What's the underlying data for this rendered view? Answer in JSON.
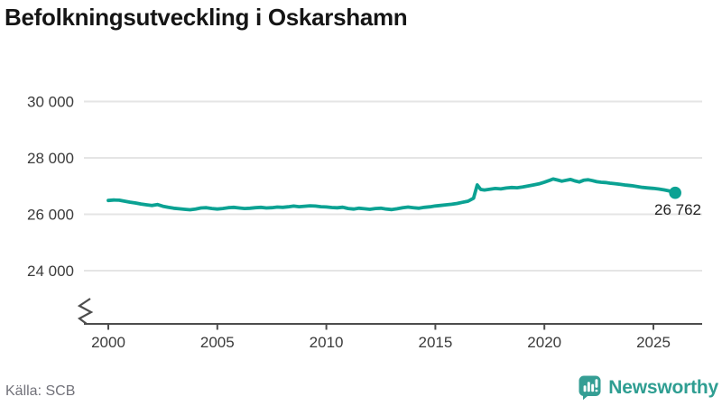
{
  "title": "Befolkningsutveckling i Oskarshamn",
  "source": "Källa: SCB",
  "branding": {
    "name": "Newsworthy",
    "icon": "bar-chart-speech-bubble-icon",
    "color": "#359e94"
  },
  "colors": {
    "line": "#0ba293",
    "axis": "#4d4d4d",
    "grid": "#e5e5e5",
    "tick_text": "#3b3b3b",
    "title_text": "#151515",
    "muted_text": "#72727a"
  },
  "chart_data": {
    "type": "line",
    "title": "Befolkningsutveckling i Oskarshamn",
    "xlabel": "",
    "ylabel": "",
    "legend": false,
    "grid": "horizontal",
    "axis_break_bottom_left": true,
    "xlim": [
      1998.9,
      2027.2
    ],
    "ylim": [
      23200,
      30400
    ],
    "x_ticks": {
      "values": [
        2000,
        2005,
        2010,
        2015,
        2020,
        2025
      ],
      "labels": [
        "2000",
        "2005",
        "2010",
        "2015",
        "2020",
        "2025"
      ]
    },
    "y_ticks": {
      "values": [
        24000,
        26000,
        28000,
        30000
      ],
      "labels": [
        "24 000",
        "26 000",
        "28 000",
        "30 000"
      ]
    },
    "end_label": "26 762",
    "end_value": 26762,
    "series": [
      {
        "name": "Befolkning",
        "x": [
          2000.0,
          2000.25,
          2000.5,
          2000.75,
          2001.0,
          2001.25,
          2001.5,
          2001.75,
          2002.0,
          2002.25,
          2002.5,
          2002.75,
          2003.0,
          2003.25,
          2003.5,
          2003.75,
          2004.0,
          2004.25,
          2004.5,
          2004.75,
          2005.0,
          2005.25,
          2005.5,
          2005.75,
          2006.0,
          2006.25,
          2006.5,
          2006.75,
          2007.0,
          2007.25,
          2007.5,
          2007.75,
          2008.0,
          2008.25,
          2008.5,
          2008.75,
          2009.0,
          2009.25,
          2009.5,
          2009.75,
          2010.0,
          2010.25,
          2010.5,
          2010.75,
          2011.0,
          2011.25,
          2011.5,
          2011.75,
          2012.0,
          2012.25,
          2012.5,
          2012.75,
          2013.0,
          2013.25,
          2013.5,
          2013.75,
          2014.0,
          2014.25,
          2014.5,
          2014.75,
          2015.0,
          2015.25,
          2015.5,
          2015.75,
          2016.0,
          2016.25,
          2016.5,
          2016.75,
          2016.92,
          2017.08,
          2017.25,
          2017.5,
          2017.75,
          2018.0,
          2018.25,
          2018.5,
          2018.75,
          2019.0,
          2019.25,
          2019.5,
          2019.75,
          2020.0,
          2020.25,
          2020.4,
          2020.6,
          2020.8,
          2021.0,
          2021.2,
          2021.4,
          2021.6,
          2021.8,
          2022.0,
          2022.2,
          2022.4,
          2022.6,
          2022.8,
          2023.0,
          2023.25,
          2023.5,
          2023.75,
          2024.0,
          2024.25,
          2024.5,
          2024.75,
          2025.0,
          2025.25,
          2025.5,
          2025.75,
          2026.0
        ],
        "y": [
          26490,
          26505,
          26500,
          26465,
          26430,
          26400,
          26365,
          26335,
          26310,
          26345,
          26285,
          26245,
          26215,
          26195,
          26175,
          26160,
          26185,
          26225,
          26235,
          26205,
          26185,
          26205,
          26235,
          26245,
          26225,
          26205,
          26215,
          26235,
          26245,
          26225,
          26235,
          26255,
          26245,
          26265,
          26290,
          26270,
          26285,
          26300,
          26290,
          26270,
          26260,
          26240,
          26230,
          26250,
          26205,
          26185,
          26215,
          26195,
          26175,
          26205,
          26215,
          26185,
          26165,
          26195,
          26235,
          26255,
          26235,
          26215,
          26245,
          26265,
          26295,
          26315,
          26335,
          26355,
          26385,
          26425,
          26465,
          26570,
          27040,
          26880,
          26860,
          26890,
          26915,
          26900,
          26930,
          26950,
          26940,
          26970,
          27005,
          27040,
          27080,
          27140,
          27205,
          27250,
          27215,
          27175,
          27205,
          27235,
          27185,
          27145,
          27205,
          27225,
          27195,
          27155,
          27135,
          27125,
          27105,
          27085,
          27060,
          27035,
          27015,
          26985,
          26955,
          26935,
          26920,
          26895,
          26865,
          26825,
          26762
        ]
      }
    ]
  }
}
